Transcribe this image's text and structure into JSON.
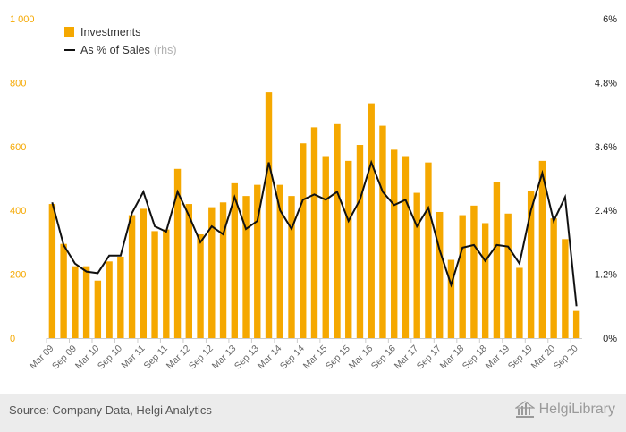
{
  "chart_data": {
    "type": "bar",
    "title": "",
    "categories": [
      "Mar 09",
      "Jun 09",
      "Sep 09",
      "Dec 09",
      "Mar 10",
      "Jun 10",
      "Sep 10",
      "Dec 10",
      "Mar 11",
      "Jun 11",
      "Sep 11",
      "Dec 11",
      "Mar 12",
      "Jun 12",
      "Sep 12",
      "Dec 12",
      "Mar 13",
      "Jun 13",
      "Sep 13",
      "Dec 13",
      "Mar 14",
      "Jun 14",
      "Sep 14",
      "Dec 14",
      "Mar 15",
      "Jun 15",
      "Sep 15",
      "Dec 15",
      "Mar 16",
      "Jun 16",
      "Sep 16",
      "Dec 16",
      "Mar 17",
      "Jun 17",
      "Sep 17",
      "Dec 17",
      "Mar 18",
      "Jun 18",
      "Sep 18",
      "Dec 18",
      "Mar 19",
      "Jun 19",
      "Sep 19",
      "Dec 19",
      "Mar 20",
      "Jun 20",
      "Sep 20"
    ],
    "x_tick_labels": [
      "Mar 09",
      "Sep 09",
      "Mar 10",
      "Sep 10",
      "Mar 11",
      "Sep 11",
      "Mar 12",
      "Sep 12",
      "Mar 13",
      "Sep 13",
      "Mar 14",
      "Sep 14",
      "Mar 15",
      "Sep 15",
      "Mar 16",
      "Sep 16",
      "Mar 17",
      "Sep 17",
      "Mar 18",
      "Sep 18",
      "Mar 19",
      "Sep 19",
      "Mar 20",
      "Sep 20"
    ],
    "series": [
      {
        "name": "Investments",
        "type": "bar",
        "axis": "left",
        "color": "#f5a800",
        "values": [
          420,
          295,
          225,
          225,
          180,
          240,
          255,
          385,
          405,
          335,
          340,
          530,
          420,
          325,
          410,
          425,
          485,
          445,
          480,
          770,
          480,
          445,
          610,
          660,
          570,
          670,
          555,
          605,
          735,
          665,
          590,
          570,
          455,
          550,
          395,
          245,
          385,
          415,
          360,
          490,
          390,
          220,
          460,
          555,
          375,
          310,
          85
        ]
      },
      {
        "name": "As % of Sales",
        "name_suffix": "(rhs)",
        "type": "line",
        "axis": "right",
        "color": "#111111",
        "values": [
          2.55,
          1.75,
          1.4,
          1.25,
          1.22,
          1.55,
          1.55,
          2.35,
          2.75,
          2.1,
          2.0,
          2.75,
          2.3,
          1.8,
          2.1,
          1.95,
          2.65,
          2.05,
          2.2,
          3.3,
          2.4,
          2.05,
          2.6,
          2.7,
          2.6,
          2.75,
          2.2,
          2.6,
          3.3,
          2.75,
          2.5,
          2.6,
          2.1,
          2.45,
          1.65,
          1.0,
          1.7,
          1.75,
          1.45,
          1.75,
          1.72,
          1.4,
          2.4,
          3.1,
          2.2,
          2.65,
          0.6
        ]
      }
    ],
    "y_left": {
      "ylim": [
        0,
        1000
      ],
      "ticks": [
        0,
        200,
        400,
        600,
        800,
        1000
      ],
      "tick_labels": [
        "0",
        "200",
        "400",
        "600",
        "800",
        "1 000"
      ]
    },
    "y_right": {
      "ylim": [
        0,
        6
      ],
      "ticks": [
        0,
        1.2,
        2.4,
        3.6,
        4.8,
        6
      ],
      "tick_labels": [
        "0%",
        "1.2%",
        "2.4%",
        "3.6%",
        "4.8%",
        "6%"
      ]
    },
    "grid": false,
    "legend_position": "top-left"
  },
  "footer": {
    "source": "Source: Company Data, Helgi Analytics",
    "brand": "HelgiLibrary"
  }
}
